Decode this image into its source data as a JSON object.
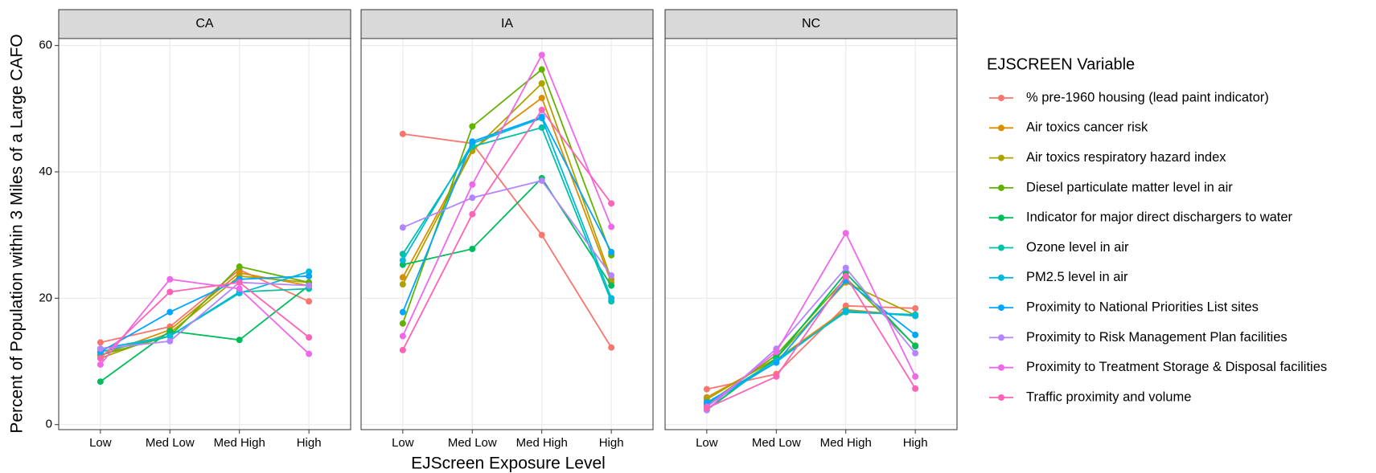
{
  "chart_data": {
    "type": "line",
    "xlabel": "EJScreen Exposure Level",
    "ylabel": "Percent of Population within 3 Miles of a Large CAFO",
    "legend_title": "EJSCREEN Variable",
    "legend_position": "right",
    "grid": true,
    "categories": [
      "Low",
      "Med Low",
      "Med High",
      "High"
    ],
    "ylim": [
      -0.8,
      61.1
    ],
    "yticks": [
      0,
      20,
      40,
      60
    ],
    "series": [
      {
        "name": "% pre-1960 housing (lead paint indicator)",
        "color": "#F8766D"
      },
      {
        "name": "Air toxics cancer risk",
        "color": "#DB8E00"
      },
      {
        "name": "Air toxics respiratory hazard index",
        "color": "#AEA200"
      },
      {
        "name": "Diesel particulate matter level in air",
        "color": "#64B200"
      },
      {
        "name": "Indicator for major direct dischargers to water",
        "color": "#00BD5C"
      },
      {
        "name": "Ozone level in air",
        "color": "#00C1A7"
      },
      {
        "name": "PM2.5 level in air",
        "color": "#00BADE"
      },
      {
        "name": "Proximity to National Priorities List sites",
        "color": "#00A6FF"
      },
      {
        "name": "Proximity to Risk Management Plan facilities",
        "color": "#B385FF"
      },
      {
        "name": "Proximity to Treatment Storage & Disposal facilities",
        "color": "#EF67EB"
      },
      {
        "name": "Traffic proximity and volume",
        "color": "#FF63B6"
      }
    ],
    "panels": [
      {
        "title": "CA",
        "series": [
          {
            "values": [
              13,
              15.5,
              24.5,
              19.5
            ]
          },
          {
            "values": [
              11,
              15,
              24,
              22
            ]
          },
          {
            "values": [
              10.5,
              14.5,
              23.5,
              22.5
            ]
          },
          {
            "values": [
              11,
              14,
              25,
              22.5
            ]
          },
          {
            "values": [
              6.8,
              14.8,
              13.4,
              22
            ]
          },
          {
            "values": [
              11.5,
              14,
              21,
              21.5
            ]
          },
          {
            "values": [
              12,
              14,
              20.8,
              24.2
            ]
          },
          {
            "values": [
              11.5,
              17.8,
              23,
              23.5
            ]
          },
          {
            "values": [
              12,
              13.2,
              22.5,
              22
            ]
          },
          {
            "values": [
              9.5,
              23,
              21.5,
              11.2
            ]
          },
          {
            "values": [
              10.5,
              21,
              22.5,
              13.8
            ]
          }
        ]
      },
      {
        "title": "IA",
        "series": [
          {
            "values": [
              46,
              44.5,
              30,
              12.2
            ]
          },
          {
            "values": [
              23.3,
              43.5,
              51.7,
              22.5
            ]
          },
          {
            "values": [
              22.2,
              43.3,
              54,
              23
            ]
          },
          {
            "values": [
              16,
              47.2,
              56.2,
              26.8
            ]
          },
          {
            "values": [
              25.3,
              27.8,
              39,
              22
            ]
          },
          {
            "values": [
              27,
              44,
              47,
              19.5
            ]
          },
          {
            "values": [
              26,
              44.5,
              48.5,
              20
            ]
          },
          {
            "values": [
              17.8,
              44.8,
              48.7,
              27.3
            ]
          },
          {
            "values": [
              31.2,
              35.9,
              38.6,
              23.6
            ]
          },
          {
            "values": [
              14,
              38,
              58.5,
              31.3
            ]
          },
          {
            "values": [
              11.8,
              33.3,
              49.8,
              35
            ]
          }
        ]
      },
      {
        "title": "NC",
        "series": [
          {
            "values": [
              5.6,
              8,
              18.8,
              18.4
            ]
          },
          {
            "values": [
              4.3,
              10.3,
              18.2,
              17.2
            ]
          },
          {
            "values": [
              4,
              10.5,
              22.5,
              17.3
            ]
          },
          {
            "values": [
              3.2,
              11,
              23.2,
              12.5
            ]
          },
          {
            "values": [
              2.3,
              10.5,
              24,
              12.4
            ]
          },
          {
            "values": [
              3.3,
              10.2,
              17.8,
              17.4
            ]
          },
          {
            "values": [
              3,
              9.9,
              18,
              17.2
            ]
          },
          {
            "values": [
              3.5,
              9.8,
              22.8,
              14.2
            ]
          },
          {
            "values": [
              2.3,
              12,
              24.8,
              11.3
            ]
          },
          {
            "values": [
              2.8,
              11.5,
              30.3,
              7.6
            ]
          },
          {
            "values": [
              2.6,
              7.6,
              23.5,
              5.7
            ]
          }
        ]
      }
    ]
  }
}
